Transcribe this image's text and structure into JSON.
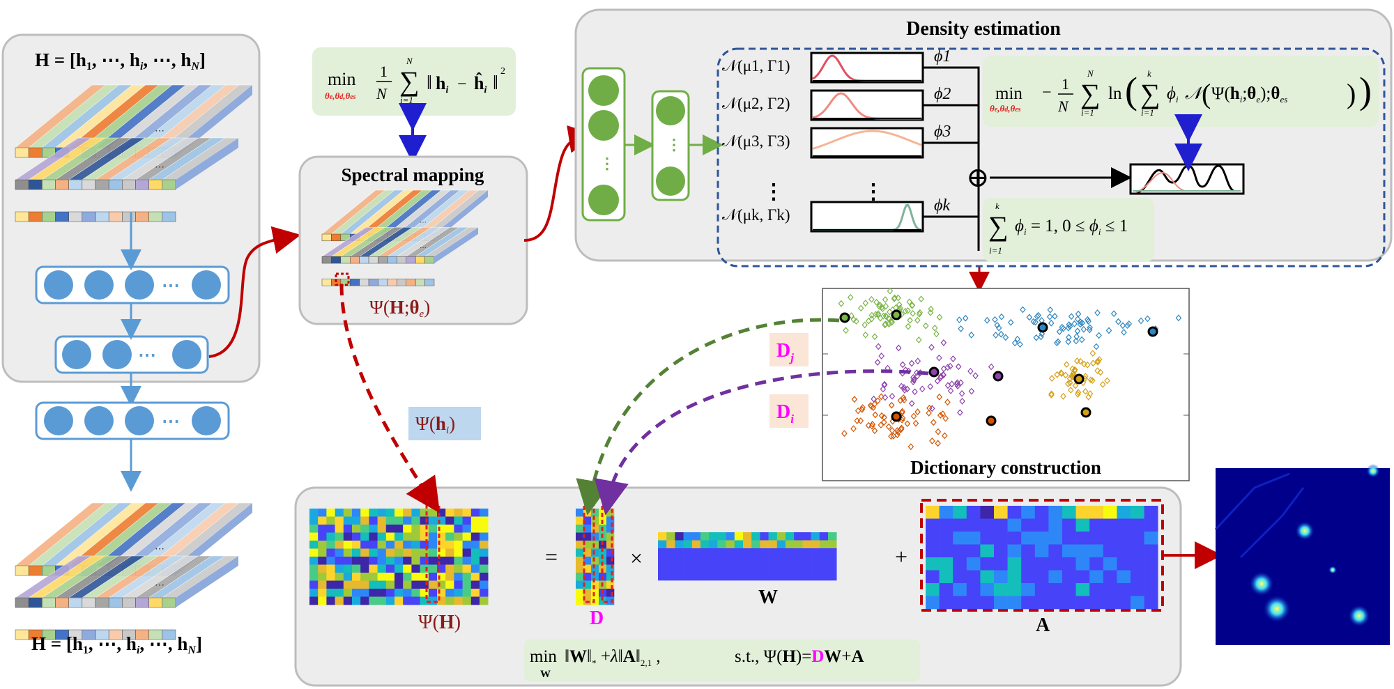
{
  "input_cube": {
    "label_top": "H = [h",
    "label_top_full": "H = [h1, ⋯, hi, ⋯, hN]",
    "label_bottom_full": "H = [h1, ⋯, hi, ⋯, hN]"
  },
  "recon_loss": {
    "min": "min",
    "sub": "θe, θd, θes",
    "expr": "1/N ∑ ‖hi − ĥi‖²",
    "sum_top": "N",
    "sum_bottom": "i=1"
  },
  "spectral_mapping": {
    "title": "Spectral mapping",
    "psi_label": "Ψ(H; θe)"
  },
  "density": {
    "title": "Density estimation",
    "components": [
      {
        "label": "𝒩(μ1, Γ1)",
        "phi": "ϕ1",
        "color": "#e05060"
      },
      {
        "label": "𝒩(μ2, Γ2)",
        "phi": "ϕ2",
        "color": "#f08a80"
      },
      {
        "label": "𝒩(μ3, Γ3)",
        "phi": "ϕ3",
        "color": "#f5b596"
      },
      {
        "label": "𝒩(μk, Γk)",
        "phi": "ϕk",
        "color": "#7fb39a"
      }
    ],
    "vdots": "⋮",
    "loss_min": "min",
    "loss_sub": "θe, θd, θes",
    "loss_expr": "−1/N ∑ ln( ∑ ϕi 𝒩(Ψ(hi; θe); θes) )",
    "constraint": "∑ ϕi = 1,  0 ≤ ϕi ≤ 1",
    "constraint_top": "k",
    "constraint_bottom": "i=1",
    "oplus": "⊕"
  },
  "dictionary": {
    "title": "Dictionary construction",
    "dj_label": "Dj",
    "di_label": "Di"
  },
  "psi_hi": "Ψ(hi)",
  "decomp": {
    "psi_h": "Ψ(H)",
    "equals": "=",
    "times": "×",
    "plus": "+",
    "d_label": "D",
    "w_label": "W",
    "a_label": "A",
    "objective": "min ‖W‖* + λ‖A‖2,1 ,    s.t., Ψ(H)=DW+A",
    "obj_min": "min",
    "obj_sub": "W",
    "obj_body": "‖W‖* + λ‖A‖2,1 ,",
    "obj_st": "s.t., Ψ(H)=",
    "obj_d": "D",
    "obj_rest": "W+A"
  },
  "colors": {
    "panel_bg": "#ededed",
    "panel_border": "#bdbdbd",
    "neuron": "#5b9bd5",
    "neuron_green": "#70ad47",
    "green_box": "#e2efd9",
    "red_arrow": "#c00000",
    "magenta": "#ff00ff",
    "blue_arrow": "#1f1fd0",
    "purple_arrow": "#7030a0",
    "green_arrow": "#548235",
    "label_bg": "#fbe5d6",
    "psi_bg": "#bdd7ee",
    "dash_border": "#2f5597"
  },
  "chart_data": {
    "type": "scatter",
    "title": "Dictionary construction",
    "series": [
      {
        "name": "",
        "color": "#7ab648"
      },
      {
        "name": "",
        "color": "#2e86c1"
      },
      {
        "name": "",
        "color": "#8e44ad"
      },
      {
        "name": "",
        "color": "#d4a017"
      },
      {
        "name": "",
        "color": "#d35400"
      }
    ]
  }
}
